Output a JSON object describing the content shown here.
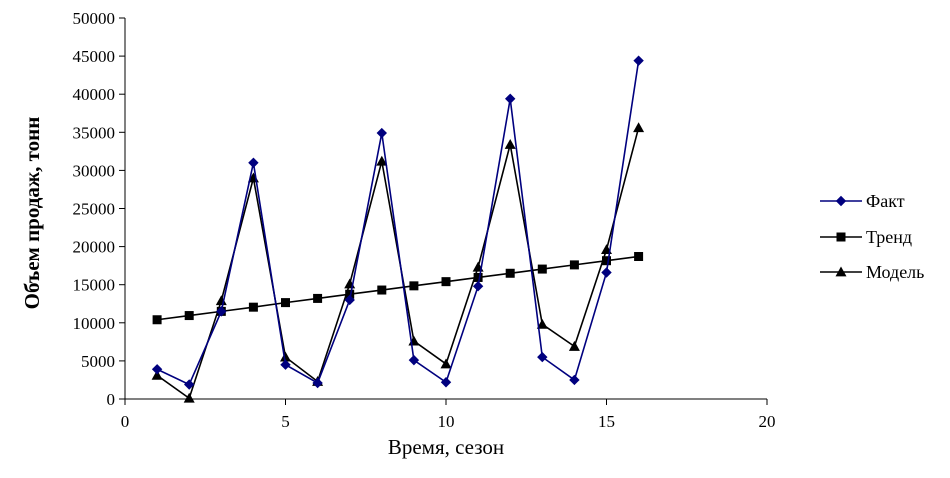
{
  "chart_data": {
    "type": "line",
    "xlabel": "Время, сезон",
    "ylabel": "Объем продаж, тонн",
    "xlim": [
      0,
      20
    ],
    "ylim": [
      0,
      50000
    ],
    "xticks": [
      0,
      5,
      10,
      15,
      20
    ],
    "yticks": [
      0,
      5000,
      10000,
      15000,
      20000,
      25000,
      30000,
      35000,
      40000,
      45000,
      50000
    ],
    "grid": false,
    "legend_position": "right",
    "x": [
      1,
      2,
      3,
      4,
      5,
      6,
      7,
      8,
      9,
      10,
      11,
      12,
      13,
      14,
      15,
      16
    ],
    "series": [
      {
        "name": "Факт",
        "color": "#00007f",
        "marker": "diamond",
        "values": [
          3900,
          1900,
          11500,
          31000,
          4500,
          2100,
          13000,
          34900,
          5100,
          2200,
          14800,
          39400,
          5500,
          2500,
          16600,
          44400
        ]
      },
      {
        "name": "Тренд",
        "color": "#000000",
        "marker": "square",
        "values": [
          10400,
          10950,
          11500,
          12050,
          12650,
          13200,
          13750,
          14300,
          14850,
          15400,
          15950,
          16500,
          17050,
          17600,
          18150,
          18700
        ]
      },
      {
        "name": "Модель",
        "color": "#000000",
        "marker": "triangle",
        "values": [
          3100,
          100,
          12900,
          29000,
          5500,
          2300,
          15100,
          31200,
          7600,
          4600,
          17300,
          33400,
          9800,
          6900,
          19600,
          35600
        ]
      }
    ]
  }
}
